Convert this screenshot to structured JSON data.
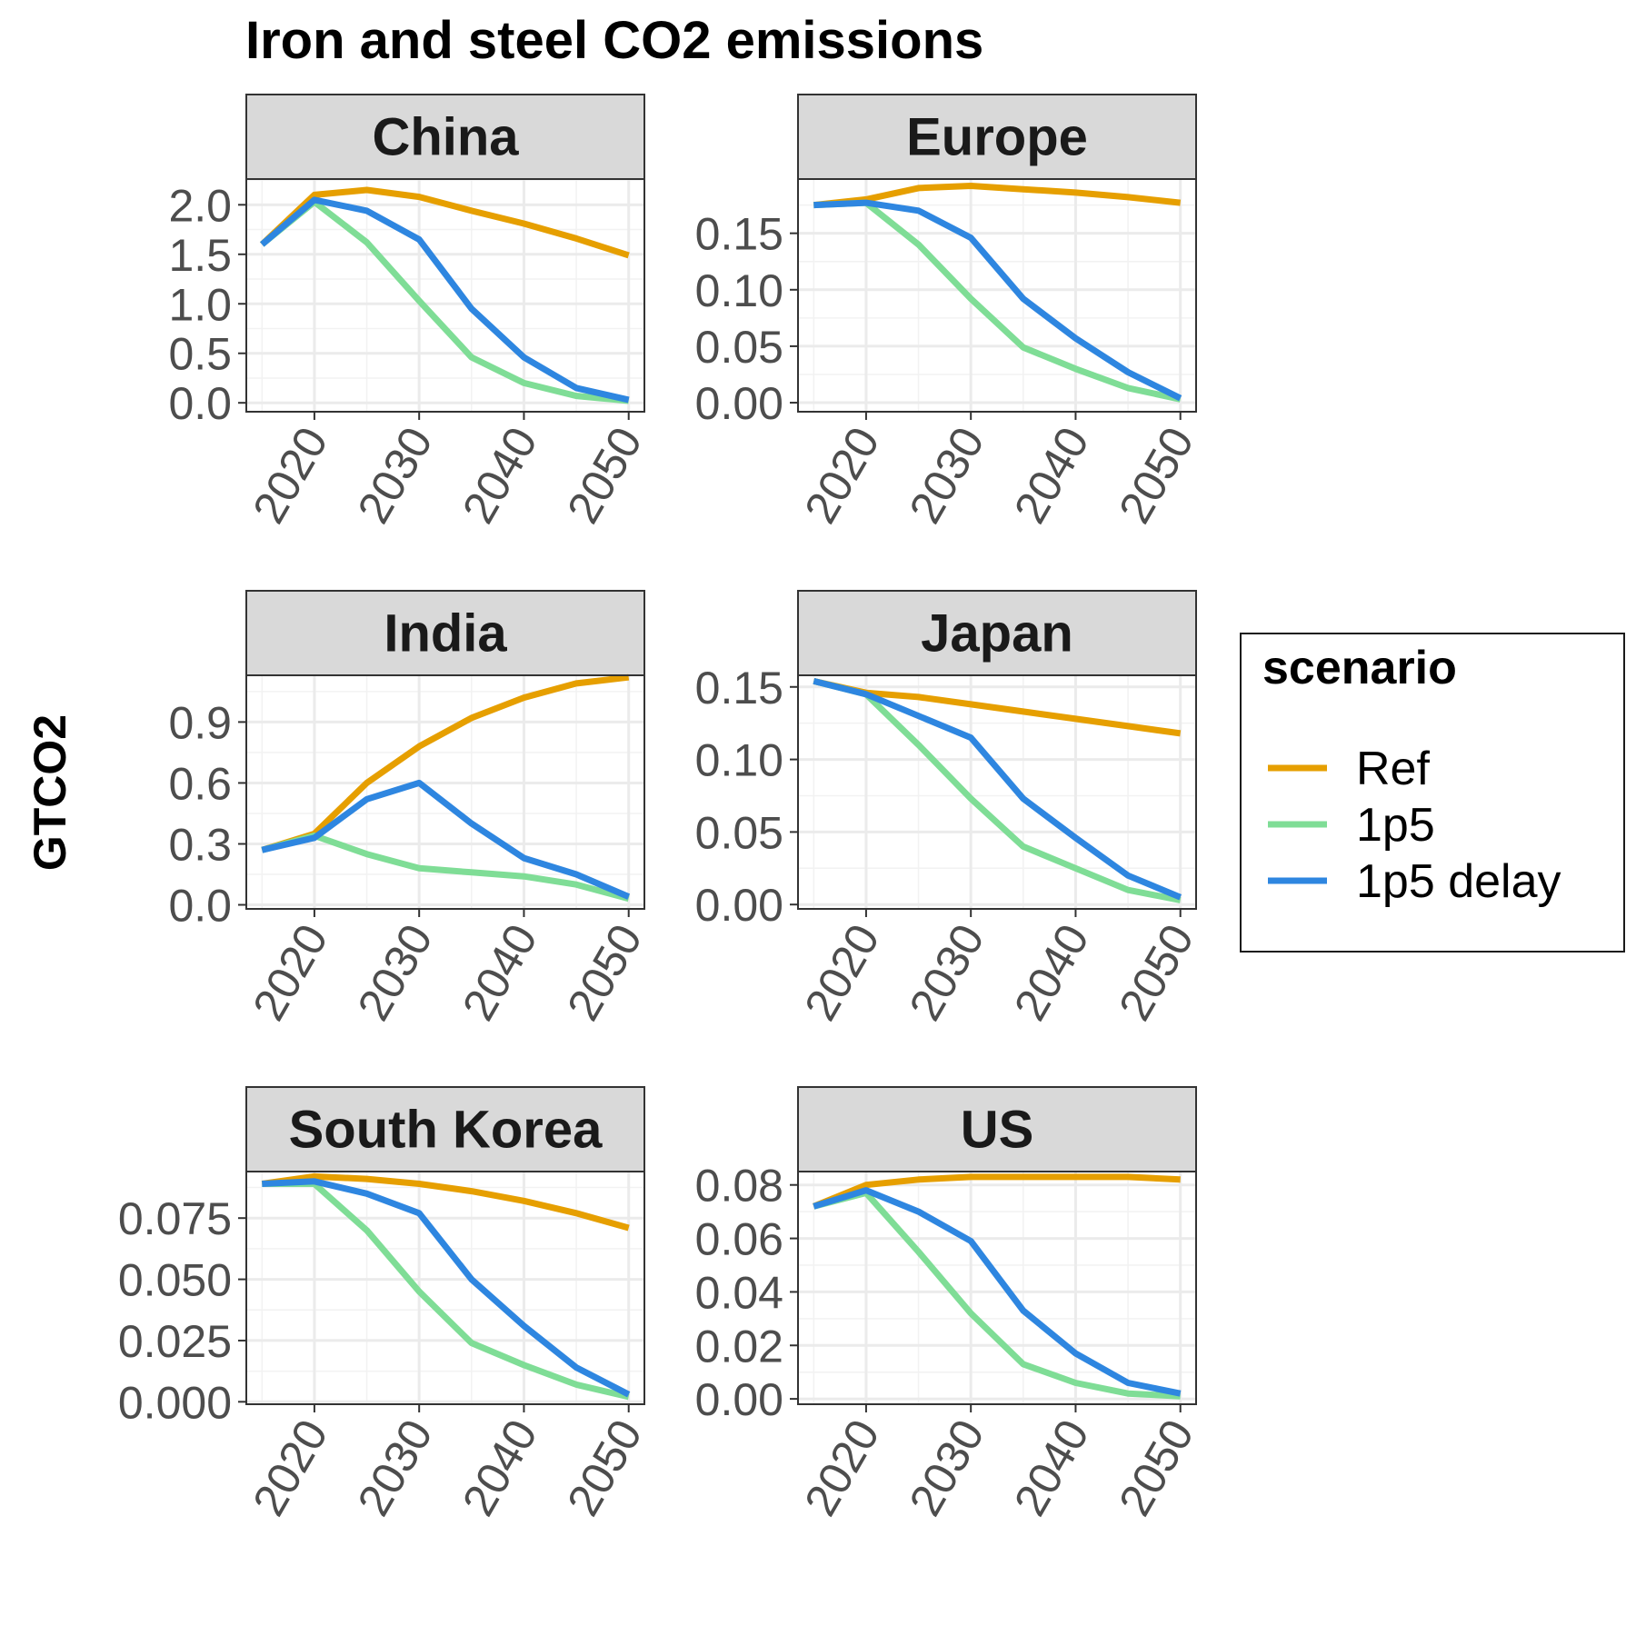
{
  "chart_data": {
    "type": "line",
    "title": "Iron and steel CO2 emissions",
    "xlabel": "",
    "ylabel": "GTCO2",
    "x": [
      2015,
      2020,
      2025,
      2030,
      2035,
      2040,
      2045,
      2050
    ],
    "x_ticks": [
      2020,
      2030,
      2040,
      2050
    ],
    "xlim": [
      2013.5,
      2051.5
    ],
    "grid": true,
    "legend": {
      "title": "scenario",
      "position": "right",
      "items": [
        {
          "name": "Ref",
          "color": "#E69F00"
        },
        {
          "name": "1p5",
          "color": "#7FDD96"
        },
        {
          "name": "1p5 delay",
          "color": "#2E86E0"
        }
      ]
    },
    "panels": [
      {
        "name": "China",
        "ylim": [
          -0.09,
          2.26
        ],
        "y_ticks": [
          0.0,
          0.5,
          1.0,
          1.5,
          2.0
        ],
        "y_tick_labels": [
          "0.0",
          "0.5",
          "1.0",
          "1.5",
          "2.0"
        ],
        "series": [
          {
            "name": "Ref",
            "values": [
              1.6,
              2.1,
              2.15,
              2.08,
              1.94,
              1.81,
              1.66,
              1.49
            ]
          },
          {
            "name": "1p5",
            "values": [
              1.6,
              2.03,
              1.62,
              1.03,
              0.46,
              0.2,
              0.07,
              0.02
            ]
          },
          {
            "name": "1p5 delay",
            "values": [
              1.6,
              2.05,
              1.94,
              1.65,
              0.95,
              0.46,
              0.15,
              0.03
            ]
          }
        ]
      },
      {
        "name": "Europe",
        "ylim": [
          -0.008,
          0.198
        ],
        "y_ticks": [
          0.0,
          0.05,
          0.1,
          0.15
        ],
        "y_tick_labels": [
          "0.00",
          "0.05",
          "0.10",
          "0.15"
        ],
        "series": [
          {
            "name": "Ref",
            "values": [
              0.175,
              0.18,
              0.19,
              0.192,
              0.189,
              0.186,
              0.182,
              0.177
            ]
          },
          {
            "name": "1p5",
            "values": [
              0.175,
              0.177,
              0.14,
              0.092,
              0.049,
              0.03,
              0.013,
              0.003
            ]
          },
          {
            "name": "1p5 delay",
            "values": [
              0.175,
              0.177,
              0.17,
              0.146,
              0.092,
              0.057,
              0.027,
              0.004
            ]
          }
        ]
      },
      {
        "name": "India",
        "ylim": [
          -0.02,
          1.13
        ],
        "y_ticks": [
          0.0,
          0.3,
          0.6,
          0.9
        ],
        "y_tick_labels": [
          "0.0",
          "0.3",
          "0.6",
          "0.9"
        ],
        "series": [
          {
            "name": "Ref",
            "values": [
              0.27,
              0.35,
              0.6,
              0.78,
              0.92,
              1.02,
              1.09,
              1.12
            ]
          },
          {
            "name": "1p5",
            "values": [
              0.27,
              0.34,
              0.25,
              0.18,
              0.16,
              0.14,
              0.1,
              0.03
            ]
          },
          {
            "name": "1p5 delay",
            "values": [
              0.27,
              0.33,
              0.52,
              0.6,
              0.4,
              0.23,
              0.15,
              0.04
            ]
          }
        ]
      },
      {
        "name": "Japan",
        "ylim": [
          -0.003,
          0.158
        ],
        "y_ticks": [
          0.0,
          0.05,
          0.1,
          0.15
        ],
        "y_tick_labels": [
          "0.00",
          "0.05",
          "0.10",
          "0.15"
        ],
        "series": [
          {
            "name": "Ref",
            "values": [
              0.154,
              0.146,
              0.143,
              0.138,
              0.133,
              0.128,
              0.123,
              0.118
            ]
          },
          {
            "name": "1p5",
            "values": [
              0.154,
              0.145,
              0.11,
              0.073,
              0.04,
              0.025,
              0.01,
              0.003
            ]
          },
          {
            "name": "1p5 delay",
            "values": [
              0.154,
              0.145,
              0.13,
              0.115,
              0.073,
              0.046,
              0.02,
              0.005
            ]
          }
        ]
      },
      {
        "name": "South Korea",
        "ylim": [
          -0.001,
          0.094
        ],
        "y_ticks": [
          0.0,
          0.025,
          0.05,
          0.075
        ],
        "y_tick_labels": [
          "0.000",
          "0.025",
          "0.050",
          "0.075"
        ],
        "series": [
          {
            "name": "Ref",
            "values": [
              0.089,
              0.092,
              0.091,
              0.089,
              0.086,
              0.082,
              0.077,
              0.071
            ]
          },
          {
            "name": "1p5",
            "values": [
              0.089,
              0.089,
              0.07,
              0.045,
              0.024,
              0.015,
              0.007,
              0.002
            ]
          },
          {
            "name": "1p5 delay",
            "values": [
              0.089,
              0.09,
              0.085,
              0.077,
              0.05,
              0.031,
              0.014,
              0.003
            ]
          }
        ]
      },
      {
        "name": "US",
        "ylim": [
          -0.002,
          0.085
        ],
        "y_ticks": [
          0.0,
          0.02,
          0.04,
          0.06,
          0.08
        ],
        "y_tick_labels": [
          "0.00",
          "0.02",
          "0.04",
          "0.06",
          "0.08"
        ],
        "series": [
          {
            "name": "Ref",
            "values": [
              0.072,
              0.08,
              0.082,
              0.083,
              0.083,
              0.083,
              0.083,
              0.082
            ]
          },
          {
            "name": "1p5",
            "values": [
              0.072,
              0.077,
              0.055,
              0.032,
              0.013,
              0.006,
              0.002,
              0.001
            ]
          },
          {
            "name": "1p5 delay",
            "values": [
              0.072,
              0.078,
              0.07,
              0.059,
              0.033,
              0.017,
              0.006,
              0.002
            ]
          }
        ]
      }
    ]
  }
}
